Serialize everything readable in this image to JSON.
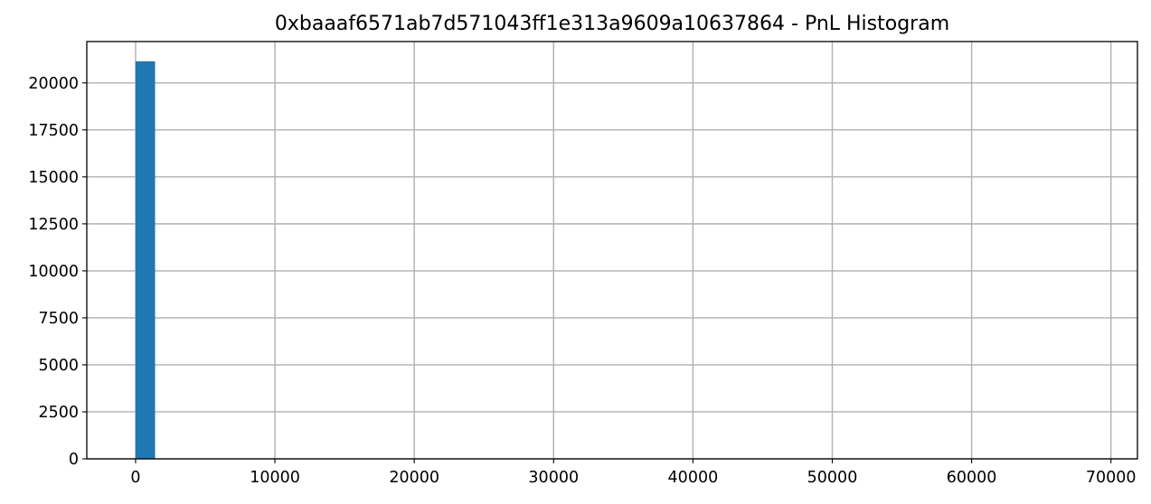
{
  "chart_data": {
    "type": "bar",
    "title": "0xbaaaf6571ab7d571043ff1e313a9609a10637864 - PnL Histogram",
    "xlabel": "",
    "ylabel": "",
    "xlim": [
      -3500,
      71900
    ],
    "ylim": [
      0,
      22200
    ],
    "x_ticks": [
      0,
      10000,
      20000,
      30000,
      40000,
      50000,
      60000,
      70000
    ],
    "y_ticks": [
      0,
      2500,
      5000,
      7500,
      10000,
      12500,
      15000,
      17500,
      20000
    ],
    "grid": true,
    "legend": "none",
    "bar_color": "#1f77b4",
    "bins": [
      {
        "x0": 0,
        "x1": 1400,
        "count": 21150
      }
    ]
  }
}
